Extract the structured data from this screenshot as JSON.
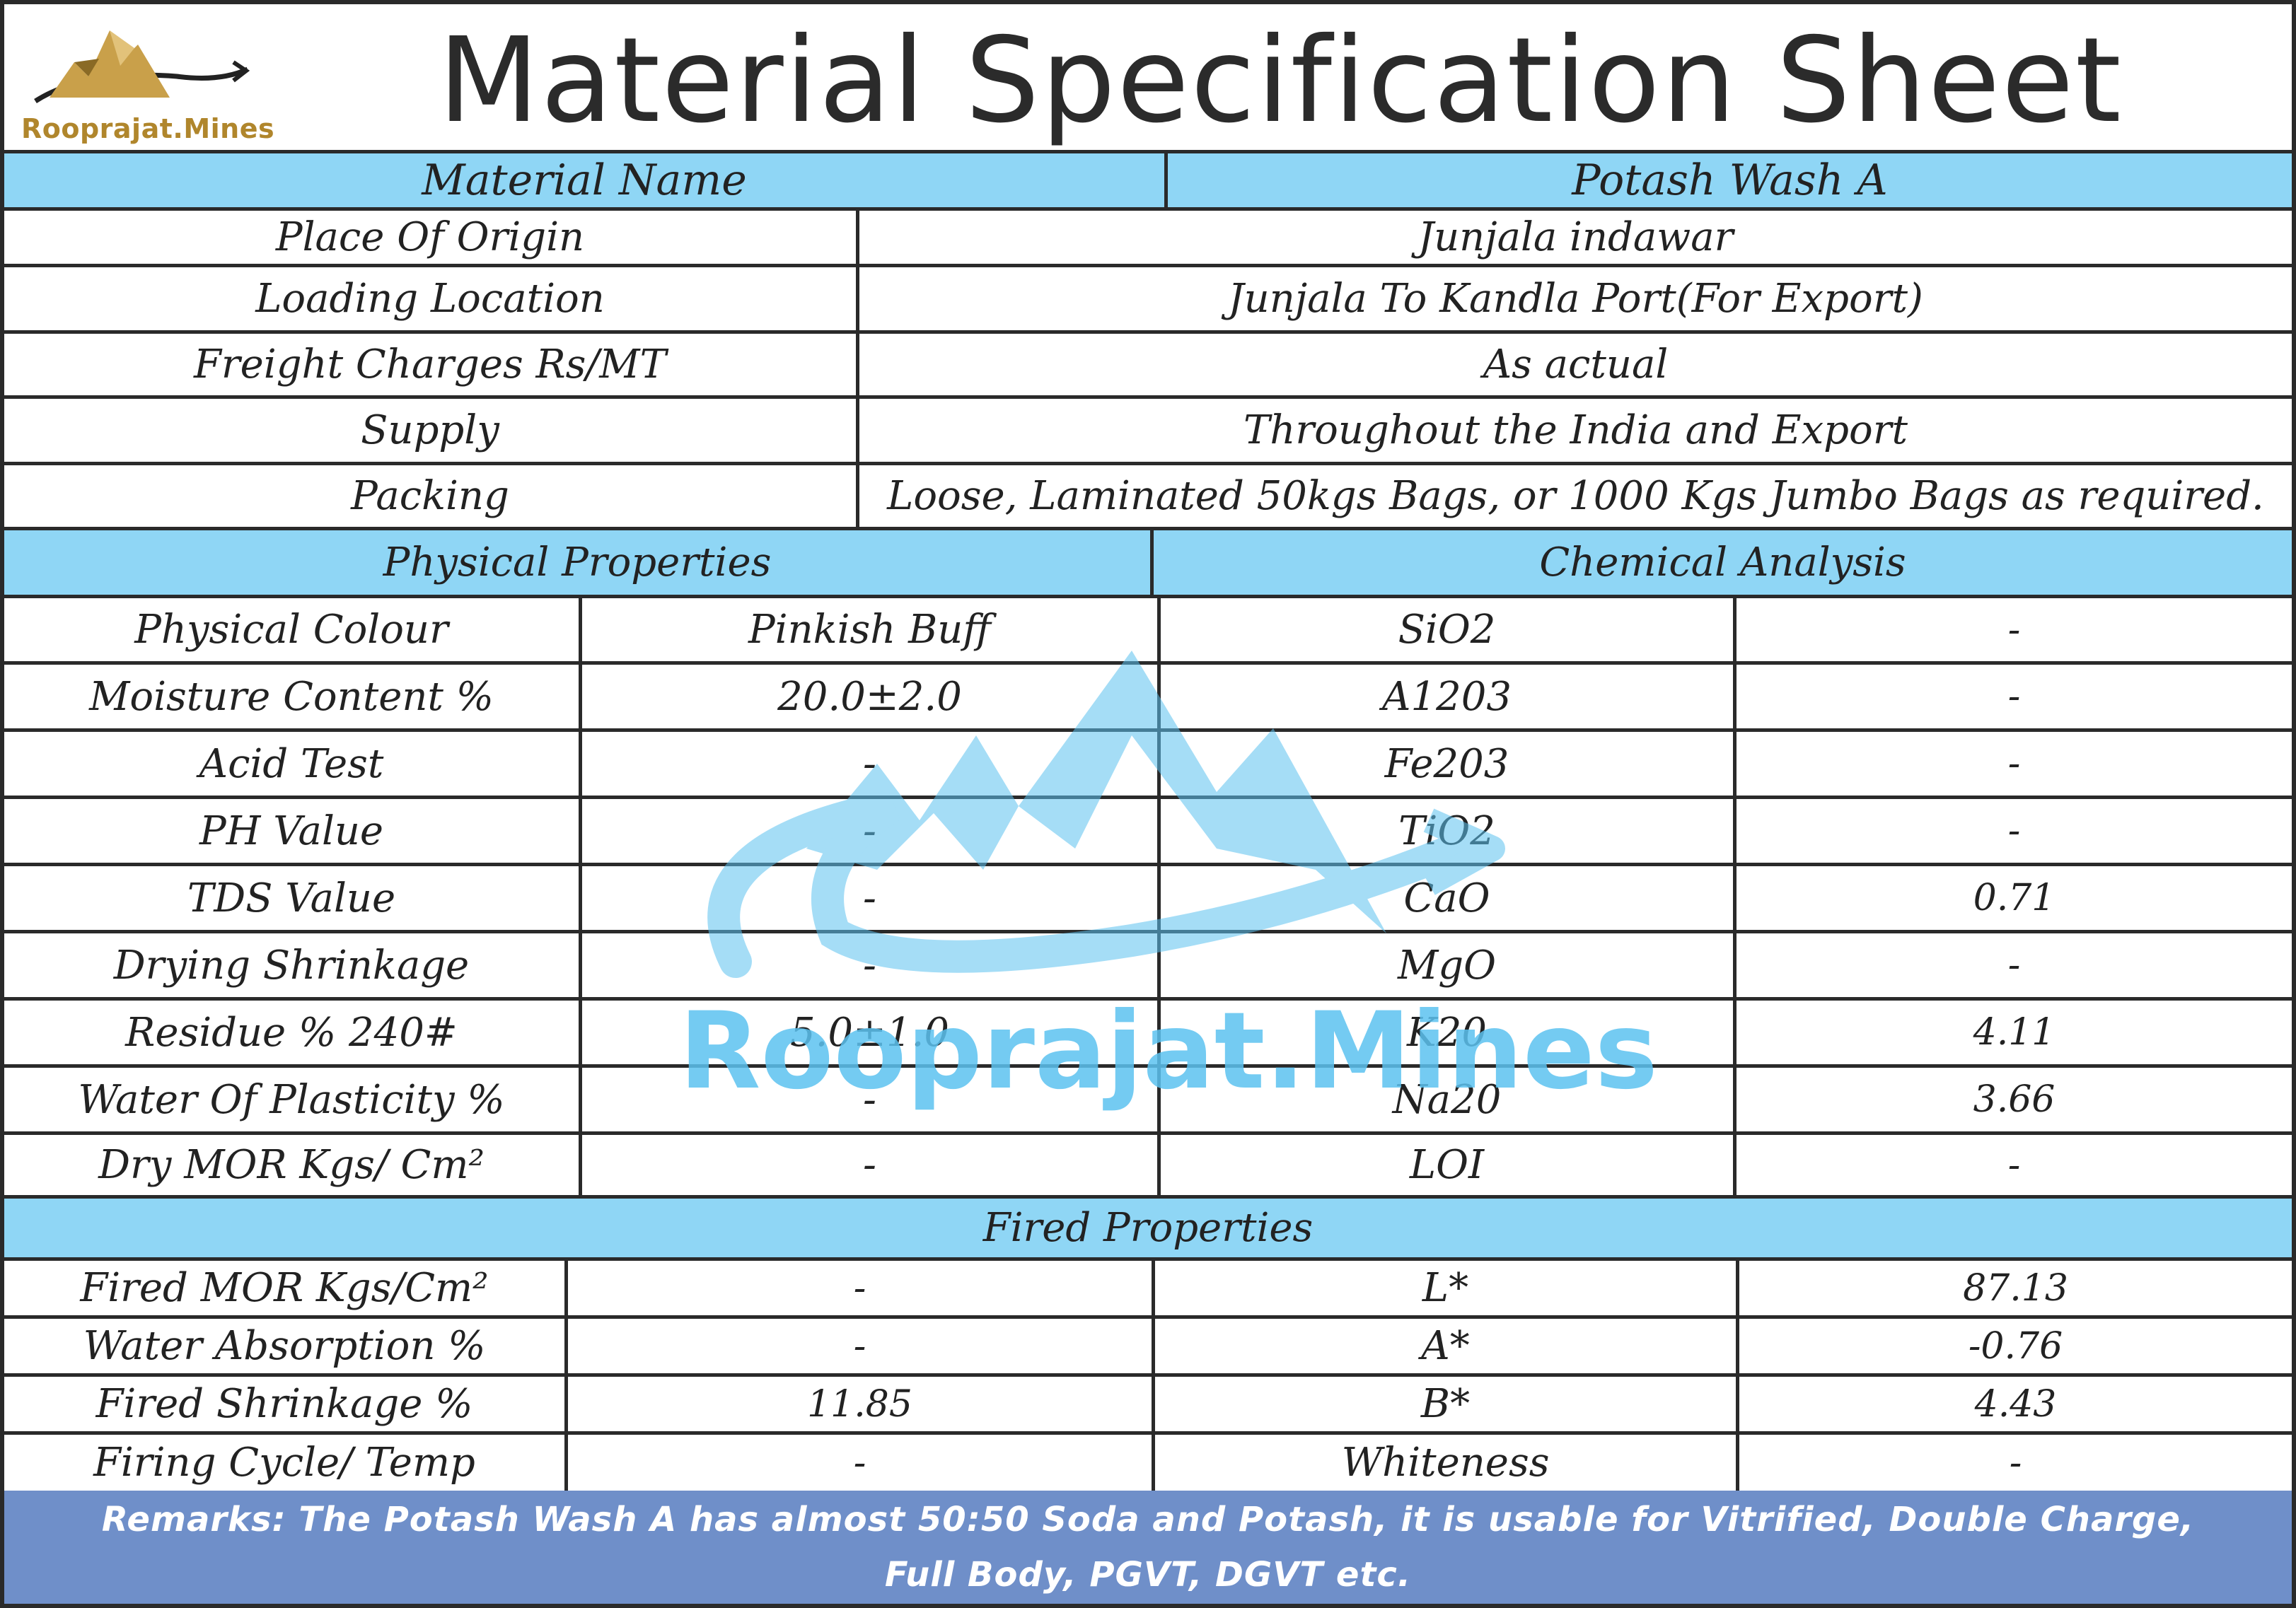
{
  "brand": {
    "name": "Rooprajat.Mines",
    "accent": "#b0862c",
    "watermark_color": "#5cc2f0"
  },
  "title": "Material Specification Sheet",
  "material": {
    "label": "Material Name",
    "value": "Potash Wash A"
  },
  "info_rows": [
    {
      "label": "Place Of Origin",
      "value": "Junjala indawar"
    },
    {
      "label": "Loading Location",
      "value": "Junjala To Kandla Port(For Export)"
    },
    {
      "label": "Freight Charges Rs/MT",
      "value": "As actual"
    },
    {
      "label": "Supply",
      "value": "Throughout the India and Export"
    },
    {
      "label": "Packing",
      "value": "Loose, Laminated 50kgs Bags, or 1000 Kgs Jumbo Bags as required."
    }
  ],
  "physical": {
    "heading": "Physical Properties",
    "rows": [
      {
        "label": "Physical Colour",
        "value": "Pinkish Buff"
      },
      {
        "label": "Moisture Content %",
        "value": "20.0±2.0"
      },
      {
        "label": "Acid Test",
        "value": "-"
      },
      {
        "label": "PH Value",
        "value": "-"
      },
      {
        "label": "TDS Value",
        "value": "-"
      },
      {
        "label": "Drying Shrinkage",
        "value": "-"
      },
      {
        "label": "Residue % 240#",
        "value": "5.0±1.0"
      },
      {
        "label": "Water Of Plasticity %",
        "value": "-"
      },
      {
        "label": "Dry MOR Kgs/ Cm²",
        "value": "-"
      }
    ]
  },
  "chemical": {
    "heading": "Chemical Analysis",
    "rows": [
      {
        "label": "SiO2",
        "value": "-"
      },
      {
        "label": "A1203",
        "value": "-"
      },
      {
        "label": "Fe203",
        "value": "-"
      },
      {
        "label": "TiO2",
        "value": "-"
      },
      {
        "label": "CaO",
        "value": "0.71"
      },
      {
        "label": "MgO",
        "value": "-"
      },
      {
        "label": "K20",
        "value": "4.11"
      },
      {
        "label": "Na20",
        "value": "3.66"
      },
      {
        "label": "LOI",
        "value": "-"
      }
    ]
  },
  "fired": {
    "heading": "Fired Properties",
    "rows": [
      {
        "label": "Fired MOR Kgs/Cm²",
        "value": "-",
        "label2": "L*",
        "value2": "87.13"
      },
      {
        "label": "Water Absorption %",
        "value": "-",
        "label2": "A*",
        "value2": "-0.76"
      },
      {
        "label": "Fired Shrinkage %",
        "value": "11.85",
        "label2": "B*",
        "value2": "4.43"
      },
      {
        "label": "Firing Cycle/ Temp",
        "value": "-",
        "label2": "Whiteness",
        "value2": "-"
      }
    ]
  },
  "remarks": {
    "line1": "Remarks: The Potash Wash A has almost 50:50 Soda and Potash, it is usable for Vitrified, Double Charge,",
    "line2": "Full Body, PGVT, DGVT etc."
  }
}
